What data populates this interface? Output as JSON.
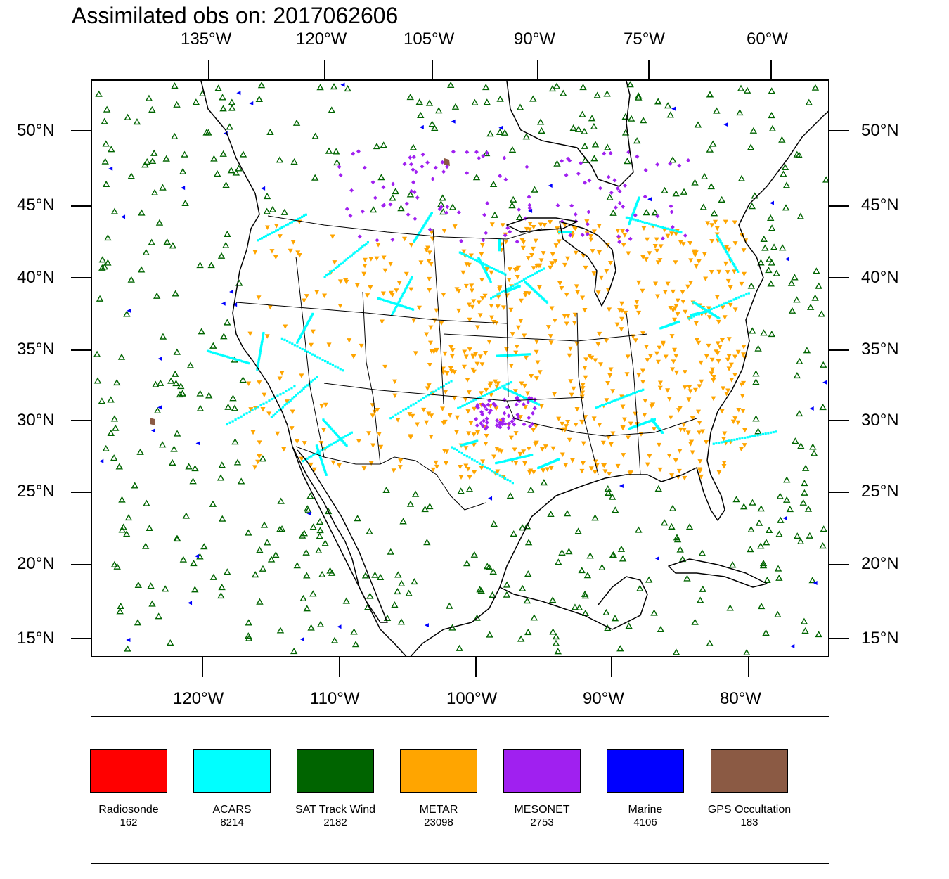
{
  "title": "Assimilated obs on: 2017062606",
  "axes": {
    "top_lon_labels": [
      "135°W",
      "120°W",
      "105°W",
      "90°W",
      "75°W",
      "60°W"
    ],
    "bottom_lon_labels": [
      "120°W",
      "110°W",
      "100°W",
      "90°W",
      "80°W"
    ],
    "left_lat_labels": [
      "50°N",
      "45°N",
      "40°N",
      "35°N",
      "30°N",
      "25°N",
      "20°N",
      "15°N"
    ],
    "right_lat_labels": [
      "50°N",
      "45°N",
      "40°N",
      "35°N",
      "30°N",
      "25°N",
      "20°N",
      "15°N"
    ]
  },
  "map": {
    "projection": "lambert-conformal",
    "region": "North America / CONUS",
    "background_color": "#ffffff",
    "coastline_color": "#000000"
  },
  "legend": {
    "items": [
      {
        "label": "Radiosonde",
        "count": "162",
        "color": "#ff0000",
        "symbol": "circle"
      },
      {
        "label": "ACARS",
        "count": "8214",
        "color": "#00ffff",
        "symbol": "square"
      },
      {
        "label": "SAT Track Wind",
        "count": "2182",
        "color": "#006400",
        "symbol": "triangle-up-hollow"
      },
      {
        "label": "METAR",
        "count": "23098",
        "color": "#ffa500",
        "symbol": "triangle-down"
      },
      {
        "label": "MESONET",
        "count": "2753",
        "color": "#a020f0",
        "symbol": "diamond"
      },
      {
        "label": "Marine",
        "count": "4106",
        "color": "#0000ff",
        "symbol": "triangle-left"
      },
      {
        "label": "GPS Occultation",
        "count": "183",
        "color": "#8b5a44",
        "symbol": "quad"
      }
    ]
  }
}
